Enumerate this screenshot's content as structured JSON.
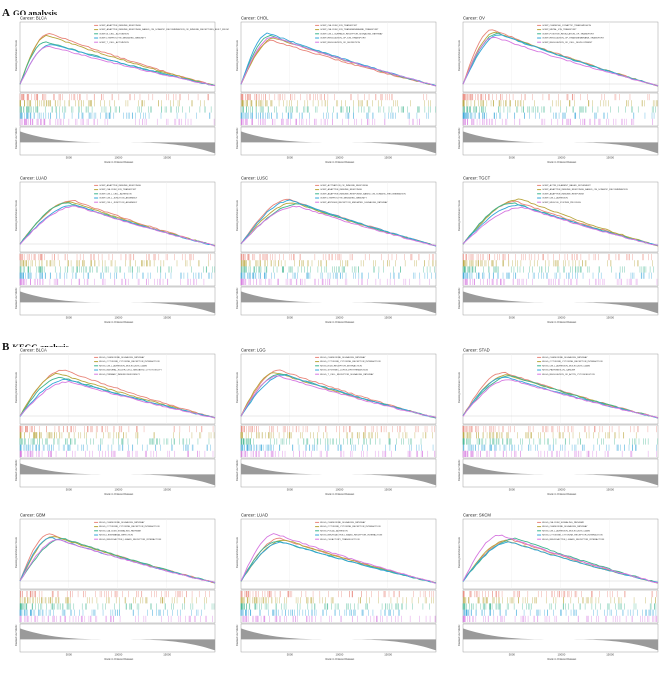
{
  "sections": [
    {
      "letter": "A",
      "title": "GO analysis"
    },
    {
      "letter": "B",
      "title": "KEGG analysis"
    }
  ],
  "axes": {
    "ylabel_top": "Running Enrichment Score",
    "ylabel_bottom": "Ranked List Metric",
    "xlabel": "Rank in Ordered Dataset",
    "xticks": [
      "5000",
      "10000",
      "15000"
    ]
  },
  "colors": [
    "#E8857A",
    "#B8A53C",
    "#3DB58E",
    "#33A5D8",
    "#D677E0"
  ],
  "chart_data": [
    {
      "type": "line",
      "title": "Cancer: BLCA",
      "xlabel": "Rank in Ordered Dataset",
      "ylabel": "Running Enrichment Score",
      "xlim": [
        0,
        20000
      ],
      "peak_rank": [
        3000,
        2800,
        2600,
        3200,
        3000
      ],
      "peak_es": [
        0.86,
        0.82,
        0.72,
        0.68,
        0.64
      ],
      "series": [
        {
          "name": "GOBP_ADAPTIVE_IMMUNE_RESPONSE"
        },
        {
          "name": "GOBP_ADAPTIVE_IMMUNE_RESPONSE_BASED_ON_SOMATIC_RECOMBINATION_OF_IMMUNE_RECEPTORS_BUILT_FROM"
        },
        {
          "name": "GOBP_B_CELL_ACTIVATION"
        },
        {
          "name": "GOBP_LYMPHOCYTE_MEDIATED_IMMUNITY"
        },
        {
          "name": "GOBP_T_CELL_ACTIVATION"
        }
      ]
    },
    {
      "type": "line",
      "title": "Cancer: CHOL",
      "xlabel": "Rank in Ordered Dataset",
      "ylabel": "Running Enrichment Score",
      "xlim": [
        0,
        20000
      ],
      "peak_rank": [
        3200,
        3500,
        3000,
        2800,
        3300
      ],
      "peak_es": [
        0.74,
        0.78,
        0.82,
        0.86,
        0.8
      ],
      "series": [
        {
          "name": "GOBP_CALCIUM_ION_TRANSPORT"
        },
        {
          "name": "GOBP_CALCIUM_ION_TRANSMEMBRANE_TRANSPORT"
        },
        {
          "name": "GOBP_CELL_SURFACE_RECEPTOR_SIGNALING_PATHWAY"
        },
        {
          "name": "GOBP_REGULATION_OF_ION_TRANSPORT"
        },
        {
          "name": "GOBP_REGULATION_OF_SECRETION"
        }
      ]
    },
    {
      "type": "line",
      "title": "Cancer: OV",
      "xlabel": "Rank in Ordered Dataset",
      "ylabel": "Running Enrichment Score",
      "xlim": [
        0,
        20000
      ],
      "peak_rank": [
        3000,
        3400,
        3600,
        3800,
        3200
      ],
      "peak_es": [
        0.92,
        0.88,
        0.86,
        0.84,
        0.8
      ],
      "series": [
        {
          "name": "GOBP_CHEMICAL_SYNAPTIC_TRANSMISSION"
        },
        {
          "name": "GOBP_METAL_ION_TRANSPORT"
        },
        {
          "name": "GOBP_POSITIVE_REGULATION_OF_TRANSPORT"
        },
        {
          "name": "GOBP_REGULATION_OF_TRANSMEMBRANE_TRANSPORT"
        },
        {
          "name": "GOBP_REGULATION_OF_CELL_DEVELOPMENT"
        }
      ]
    },
    {
      "type": "line",
      "title": "Cancer: LUAD",
      "xlabel": "Rank in Ordered Dataset",
      "ylabel": "Running Enrichment Score",
      "xlim": [
        0,
        20000
      ],
      "peak_rank": [
        5500,
        5200,
        5000,
        5600,
        5800
      ],
      "peak_es": [
        0.74,
        0.72,
        0.7,
        0.66,
        0.64
      ],
      "series": [
        {
          "name": "GOBP_ADAPTIVE_IMMUNE_RESPONSE"
        },
        {
          "name": "GOBP_CALCIUM_ION_TRANSPORT"
        },
        {
          "name": "GOBP_CELL_CELL_ADHESION"
        },
        {
          "name": "GOBP_CELL_JUNCTION_ASSEMBLY"
        },
        {
          "name": "GOBP_CELL_JUNCTION_ASSEMBLY"
        }
      ]
    },
    {
      "type": "line",
      "title": "Cancer: LUSC",
      "xlabel": "Rank in Ordered Dataset",
      "ylabel": "Running Enrichment Score",
      "xlim": [
        0,
        20000
      ],
      "peak_rank": [
        5000,
        5500,
        6000,
        5200,
        5800
      ],
      "peak_es": [
        0.76,
        0.7,
        0.68,
        0.74,
        0.64
      ],
      "series": [
        {
          "name": "GOBP_ACTIVATION_OF_IMMUNE_RESPONSE"
        },
        {
          "name": "GOBP_ADAPTIVE_IMMUNE_RESPONSE"
        },
        {
          "name": "GOBP_ADAPTIVE_IMMUNE_RESPONSE_BASED_ON_SOMATIC_RECOMBINATION"
        },
        {
          "name": "GOBP_LYMPHOCYTE_MEDIATED_IMMUNITY"
        },
        {
          "name": "GOBP_ANTIGEN_RECEPTOR_MEDIATED_SIGNALING_PATHWAY"
        }
      ]
    },
    {
      "type": "line",
      "title": "Cancer: TGCT",
      "xlabel": "Rank in Ordered Dataset",
      "ylabel": "Running Enrichment Score",
      "xlim": [
        0,
        20000
      ],
      "peak_rank": [
        5500,
        6000,
        5200,
        5800,
        6200
      ],
      "peak_es": [
        0.72,
        0.76,
        0.7,
        0.66,
        0.62
      ],
      "series": [
        {
          "name": "GOBP_ACTIN_FILAMENT_BASED_MOVEMENT"
        },
        {
          "name": "GOBP_ADAPTIVE_IMMUNE_RESPONSE_BASED_ON_SOMATIC_RECOMBINATION"
        },
        {
          "name": "GOBP_ADAPTIVE_IMMUNE_RESPONSE"
        },
        {
          "name": "GOBP_CELL_ADHESION"
        },
        {
          "name": "GOBP_MUSCLE_SYSTEM_PROCESS"
        }
      ]
    },
    {
      "type": "line",
      "title": "Cancer: BLCA",
      "xlabel": "Rank in Ordered Dataset",
      "ylabel": "Running Enrichment Score",
      "xlim": [
        0,
        20000
      ],
      "peak_rank": [
        4500,
        4000,
        4200,
        4800,
        5000
      ],
      "peak_es": [
        0.78,
        0.72,
        0.66,
        0.62,
        0.58
      ],
      "series": [
        {
          "name": "KEGG_CHEMOKINE_SIGNALING_PATHWAY"
        },
        {
          "name": "KEGG_CYTOKINE_CYTOKINE_RECEPTOR_INTERACTION"
        },
        {
          "name": "KEGG_CELL_ADHESION_MOLECULES_CAMS"
        },
        {
          "name": "KEGG_NATURAL_KILLER_CELL_MEDIATED_CYTOTOXICITY"
        },
        {
          "name": "KEGG_PRIMARY_IMMUNODEFICIENCY"
        }
      ]
    },
    {
      "type": "line",
      "title": "Cancer: LGG",
      "xlabel": "Rank in Ordered Dataset",
      "ylabel": "Running Enrichment Score",
      "xlim": [
        0,
        20000
      ],
      "peak_rank": [
        4000,
        3500,
        4200,
        4500,
        3800
      ],
      "peak_es": [
        0.78,
        0.74,
        0.72,
        0.7,
        0.68
      ],
      "series": [
        {
          "name": "KEGG_CHEMOKINE_SIGNALING_PATHWAY"
        },
        {
          "name": "KEGG_CYTOKINE_CYTOKINE_RECEPTOR_INTERACTION"
        },
        {
          "name": "KEGG_ECM_RECEPTOR_INTERACTION"
        },
        {
          "name": "KEGG_SYSTEMIC_LUPUS_ERYTHEMATOSUS"
        },
        {
          "name": "KEGG_T_CELL_RECEPTOR_SIGNALING_PATHWAY"
        }
      ]
    },
    {
      "type": "line",
      "title": "Cancer: STAD",
      "xlabel": "Rank in Ordered Dataset",
      "ylabel": "Running Enrichment Score",
      "xlim": [
        0,
        20000
      ],
      "peak_rank": [
        4200,
        4600,
        5000,
        4400,
        4800
      ],
      "peak_es": [
        0.74,
        0.7,
        0.68,
        0.66,
        0.62
      ],
      "series": [
        {
          "name": "KEGG_CHEMOKINE_SIGNALING_PATHWAY"
        },
        {
          "name": "KEGG_CYTOKINE_CYTOKINE_RECEPTOR_INTERACTION"
        },
        {
          "name": "KEGG_CELL_ADHESION_MOLECULES_CAMS"
        },
        {
          "name": "KEGG_PATHWAYS_IN_CANCER"
        },
        {
          "name": "KEGG_REGULATION_OF_ACTIN_CYTOSKELETON"
        }
      ]
    },
    {
      "type": "line",
      "title": "Cancer: GBM",
      "xlabel": "Rank in Ordered Dataset",
      "ylabel": "Running Enrichment Score",
      "xlim": [
        0,
        20000
      ],
      "peak_rank": [
        3000,
        3500,
        4500,
        3200,
        4000
      ],
      "peak_es": [
        0.8,
        0.76,
        0.72,
        0.74,
        0.7
      ],
      "series": [
        {
          "name": "KEGG_CHEMOKINE_SIGNALING_PATHWAY"
        },
        {
          "name": "KEGG_CYTOKINE_CYTOKINE_RECEPTOR_INTERACTION"
        },
        {
          "name": "KEGG_CALCIUM_SIGNALING_PATHWAY"
        },
        {
          "name": "KEGG_LEISHMANIA_INFECTION"
        },
        {
          "name": "KEGG_NEUROACTIVE_LIGAND_RECEPTOR_INTERACTION"
        }
      ]
    },
    {
      "type": "line",
      "title": "Cancer: LUAD",
      "xlabel": "Rank in Ordered Dataset",
      "ylabel": "Running Enrichment Score",
      "xlim": [
        0,
        20000
      ],
      "peak_rank": [
        4000,
        4500,
        3800,
        4200,
        3500
      ],
      "peak_es": [
        0.72,
        0.7,
        0.68,
        0.66,
        0.8
      ],
      "series": [
        {
          "name": "KEGG_CHEMOKINE_SIGNALING_PATHWAY"
        },
        {
          "name": "KEGG_CYTOKINE_CYTOKINE_RECEPTOR_INTERACTION"
        },
        {
          "name": "KEGG_FOCAL_ADHESION"
        },
        {
          "name": "KEGG_NEUROACTIVE_LIGAND_RECEPTOR_INTERACTION"
        },
        {
          "name": "KEGG_OLFACTORY_TRANSDUCTION"
        }
      ]
    },
    {
      "type": "line",
      "title": "Cancer: SKCM",
      "xlabel": "Rank in Ordered Dataset",
      "ylabel": "Running Enrichment Score",
      "xlim": [
        0,
        20000
      ],
      "peak_rank": [
        5000,
        4500,
        5500,
        4800,
        3800
      ],
      "peak_es": [
        0.7,
        0.68,
        0.72,
        0.66,
        0.78
      ],
      "series": [
        {
          "name": "KEGG_CALCIUM_SIGNALING_PATHWAY"
        },
        {
          "name": "KEGG_CHEMOKINE_SIGNALING_PATHWAY"
        },
        {
          "name": "KEGG_CELL_ADHESION_MOLECULES_CAMS"
        },
        {
          "name": "KEGG_CYTOKINE_CYTOKINE_RECEPTOR_INTERACTION"
        },
        {
          "name": "KEGG_NEUROACTIVE_LIGAND_RECEPTOR_INTERACTION"
        }
      ]
    }
  ]
}
